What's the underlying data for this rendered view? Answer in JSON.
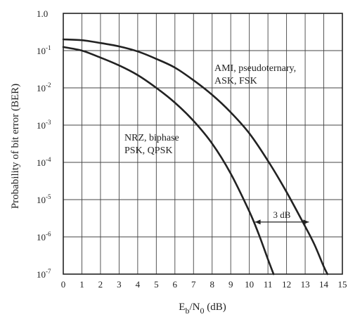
{
  "chart_data": {
    "type": "line",
    "title": "",
    "xlabel": {
      "main": "E",
      "sub1": "b",
      "mid": "/N",
      "sub2": "0",
      "tail": " (dB)"
    },
    "ylabel": "Probability of bit error (BER)",
    "xlim": [
      0,
      15
    ],
    "x_ticks": [
      "0",
      "1",
      "2",
      "3",
      "4",
      "5",
      "6",
      "7",
      "8",
      "9",
      "10",
      "11",
      "12",
      "13",
      "14",
      "15"
    ],
    "y_scale": "log",
    "ylim": [
      1e-07,
      1
    ],
    "y_ticks": [
      {
        "value": 1,
        "base": "1.0",
        "exp": ""
      },
      {
        "value": 0.1,
        "base": "10",
        "exp": "-1"
      },
      {
        "value": 0.01,
        "base": "10",
        "exp": "-2"
      },
      {
        "value": 0.001,
        "base": "10",
        "exp": "-3"
      },
      {
        "value": 0.0001,
        "base": "10",
        "exp": "-4"
      },
      {
        "value": 1e-05,
        "base": "10",
        "exp": "-5"
      },
      {
        "value": 1e-06,
        "base": "10",
        "exp": "-6"
      },
      {
        "value": 1e-07,
        "base": "10",
        "exp": "-7"
      }
    ],
    "grid": true,
    "series": [
      {
        "label_lines": [
          "NRZ, biphase",
          "PSK, QPSK"
        ],
        "x": [
          0,
          1,
          2,
          3,
          4,
          5,
          6,
          7,
          8,
          9,
          10,
          10.5,
          11,
          11.3
        ],
        "y": [
          0.125,
          0.1,
          0.065,
          0.04,
          0.022,
          0.01,
          0.004,
          0.0013,
          0.00032,
          5e-05,
          4.8e-06,
          1.2e-06,
          2.5e-07,
          1e-07
        ]
      },
      {
        "label_lines": [
          "AMI, pseudoternary,",
          "ASK, FSK"
        ],
        "x": [
          0,
          1,
          2,
          3,
          4,
          5,
          6,
          7,
          8,
          9,
          10,
          11,
          12,
          13,
          13.5,
          14,
          14.2
        ],
        "y": [
          0.2,
          0.19,
          0.16,
          0.13,
          0.095,
          0.06,
          0.035,
          0.016,
          0.0065,
          0.0022,
          0.0006,
          0.00011,
          1.6e-05,
          1.9e-06,
          6.2e-07,
          1.6e-07,
          1e-07
        ]
      }
    ],
    "annotation": {
      "text": "3 dB",
      "y": 2.5e-06,
      "x_from": 10.3,
      "x_to": 13.2
    }
  },
  "colors": {
    "line": "#222222",
    "grid": "#444444",
    "text": "#222222"
  }
}
